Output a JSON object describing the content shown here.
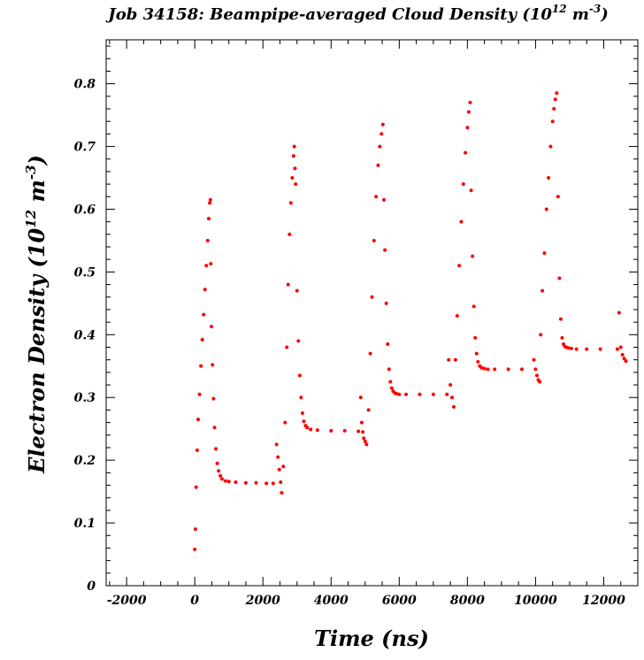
{
  "chart_data": {
    "type": "scatter",
    "title_main": "Job 34158: Beampipe-averaged Cloud Density (10",
    "title_exp1": "12",
    "title_mid": " m",
    "title_exp2": "-3",
    "title_end": ")",
    "xlabel": "Time (ns)",
    "ylabel_main": "Electron Density (10",
    "ylabel_exp1": "12",
    "ylabel_mid": " m",
    "ylabel_exp2": "-3",
    "ylabel_end": ")",
    "xlim": [
      -2600,
      13000
    ],
    "ylim": [
      0,
      0.87
    ],
    "x_ticks": [
      -2000,
      0,
      2000,
      4000,
      6000,
      8000,
      10000,
      12000
    ],
    "x_tick_labels": [
      "-2000",
      "0",
      "2000",
      "4000",
      "6000",
      "8000",
      "10000",
      "12000"
    ],
    "y_ticks": [
      0,
      0.1,
      0.2,
      0.3,
      0.4,
      0.5,
      0.6,
      0.7,
      0.8
    ],
    "y_tick_labels": [
      "0",
      "0.1",
      "0.2",
      "0.3",
      "0.4",
      "0.5",
      "0.6",
      "0.7",
      "0.8"
    ],
    "grid": false,
    "marker_color": "#ff0000",
    "series": [
      {
        "values_x": [
          0,
          20,
          40,
          70,
          100,
          140,
          180,
          220,
          260,
          300,
          340,
          380,
          410,
          440,
          460,
          470,
          490,
          520,
          550,
          580,
          620,
          660,
          700,
          750,
          800,
          900,
          1000,
          1200,
          1500,
          1800,
          2100,
          2300,
          2400,
          2440,
          2480,
          2520,
          2550
        ],
        "values_y": [
          0.058,
          0.09,
          0.157,
          0.216,
          0.265,
          0.305,
          0.35,
          0.392,
          0.432,
          0.472,
          0.51,
          0.55,
          0.585,
          0.61,
          0.615,
          0.513,
          0.413,
          0.352,
          0.298,
          0.252,
          0.218,
          0.195,
          0.183,
          0.175,
          0.17,
          0.167,
          0.166,
          0.165,
          0.164,
          0.164,
          0.163,
          0.163,
          0.225,
          0.205,
          0.185,
          0.165,
          0.148
        ]
      },
      {
        "values_x": [
          2600,
          2650,
          2700,
          2740,
          2780,
          2820,
          2860,
          2900,
          2920,
          2940,
          2960,
          3000,
          3040,
          3080,
          3120,
          3160,
          3200,
          3250,
          3300,
          3400,
          3600,
          4000,
          4400,
          4800,
          4870,
          4900,
          4930,
          4960,
          5000,
          5040
        ],
        "values_y": [
          0.19,
          0.26,
          0.38,
          0.48,
          0.56,
          0.61,
          0.65,
          0.685,
          0.7,
          0.665,
          0.64,
          0.47,
          0.39,
          0.335,
          0.3,
          0.275,
          0.262,
          0.255,
          0.252,
          0.249,
          0.248,
          0.247,
          0.247,
          0.246,
          0.3,
          0.26,
          0.245,
          0.235,
          0.23,
          0.225
        ]
      },
      {
        "values_x": [
          5100,
          5150,
          5200,
          5260,
          5320,
          5380,
          5430,
          5480,
          5520,
          5550,
          5580,
          5620,
          5660,
          5700,
          5740,
          5780,
          5820,
          5870,
          5920,
          6000,
          6200,
          6600,
          7000,
          7400,
          7450,
          7500,
          7550,
          7600
        ],
        "values_y": [
          0.28,
          0.37,
          0.46,
          0.55,
          0.62,
          0.67,
          0.7,
          0.72,
          0.735,
          0.615,
          0.535,
          0.45,
          0.385,
          0.345,
          0.325,
          0.315,
          0.31,
          0.307,
          0.306,
          0.305,
          0.305,
          0.305,
          0.305,
          0.305,
          0.36,
          0.32,
          0.3,
          0.285
        ]
      },
      {
        "values_x": [
          7650,
          7700,
          7760,
          7820,
          7880,
          7940,
          8000,
          8040,
          8080,
          8110,
          8150,
          8190,
          8230,
          8270,
          8310,
          8360,
          8420,
          8500,
          8600,
          8800,
          9200,
          9600,
          9950,
          10000,
          10040,
          10080,
          10120
        ],
        "values_y": [
          0.36,
          0.43,
          0.51,
          0.58,
          0.64,
          0.69,
          0.73,
          0.755,
          0.77,
          0.63,
          0.525,
          0.445,
          0.395,
          0.37,
          0.357,
          0.35,
          0.347,
          0.346,
          0.345,
          0.345,
          0.345,
          0.345,
          0.36,
          0.345,
          0.335,
          0.328,
          0.325
        ]
      },
      {
        "values_x": [
          10150,
          10200,
          10260,
          10320,
          10380,
          10440,
          10500,
          10540,
          10580,
          10620,
          10660,
          10700,
          10740,
          10780,
          10820,
          10860,
          10900,
          10960,
          11050,
          11200,
          11500,
          11900,
          12400,
          12450,
          12500,
          12550,
          12600,
          12650
        ],
        "values_y": [
          0.4,
          0.47,
          0.53,
          0.6,
          0.65,
          0.7,
          0.74,
          0.76,
          0.775,
          0.785,
          0.62,
          0.49,
          0.425,
          0.395,
          0.385,
          0.381,
          0.38,
          0.379,
          0.378,
          0.377,
          0.377,
          0.377,
          0.377,
          0.435,
          0.38,
          0.368,
          0.362,
          0.358
        ]
      }
    ]
  }
}
